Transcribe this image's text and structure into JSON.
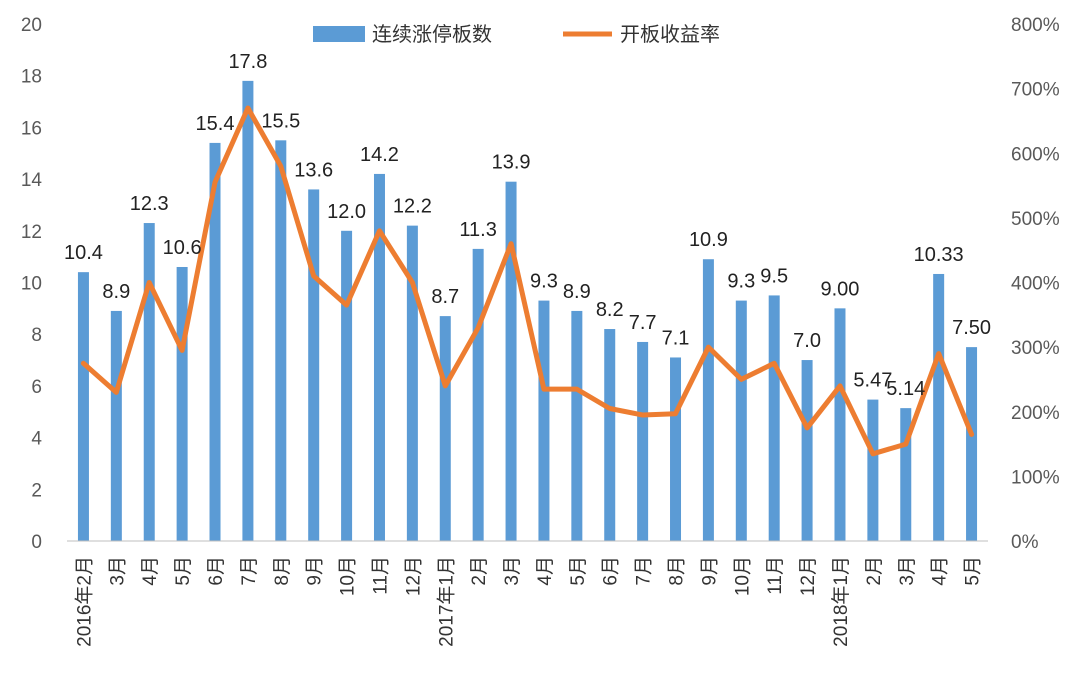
{
  "chart_data": {
    "type": "bar",
    "categories": [
      "2016年2月",
      "3月",
      "4月",
      "5月",
      "6月",
      "7月",
      "8月",
      "9月",
      "10月",
      "11月",
      "12月",
      "2017年1月",
      "2月",
      "3月",
      "4月",
      "5月",
      "6月",
      "7月",
      "8月",
      "9月",
      "10月",
      "11月",
      "12月",
      "2018年1月",
      "2月",
      "3月",
      "4月",
      "5月"
    ],
    "series": [
      {
        "name": "连续涨停板数",
        "type": "bar",
        "axis": "left",
        "values": [
          10.4,
          8.9,
          12.3,
          10.6,
          15.4,
          17.8,
          15.5,
          13.6,
          12.0,
          14.2,
          12.2,
          8.7,
          11.3,
          13.9,
          9.3,
          8.9,
          8.2,
          7.7,
          7.1,
          10.9,
          9.3,
          9.5,
          7.0,
          9.0,
          5.47,
          5.14,
          10.33,
          7.5
        ],
        "labels": [
          "10.4",
          "8.9",
          "12.3",
          "10.6",
          "15.4",
          "17.8",
          "15.5",
          "13.6",
          "12.0",
          "14.2",
          "12.2",
          "8.7",
          "11.3",
          "13.9",
          "9.3",
          "8.9",
          "8.2",
          "7.7",
          "7.1",
          "10.9",
          "9.3",
          "9.5",
          "7.0",
          "9.00",
          "5.47",
          "5.14",
          "10.33",
          "7.50"
        ],
        "color": "#5B9BD5"
      },
      {
        "name": "开板收益率",
        "type": "line",
        "axis": "right",
        "values": [
          275,
          230,
          400,
          295,
          555,
          670,
          580,
          410,
          365,
          480,
          400,
          240,
          330,
          460,
          235,
          235,
          205,
          195,
          197,
          300,
          250,
          275,
          175,
          240,
          135,
          150,
          290,
          165
        ],
        "color": "#ED7D31"
      }
    ],
    "y_left": {
      "min": 0,
      "max": 20,
      "step": 2,
      "ticks": [
        "0",
        "2",
        "4",
        "6",
        "8",
        "10",
        "12",
        "14",
        "16",
        "18",
        "20"
      ]
    },
    "y_right": {
      "min": 0,
      "max": 800,
      "step": 100,
      "ticks": [
        "0%",
        "100%",
        "200%",
        "300%",
        "400%",
        "500%",
        "600%",
        "700%",
        "800%"
      ]
    },
    "legend": {
      "position": "top-center"
    },
    "grid": false
  }
}
